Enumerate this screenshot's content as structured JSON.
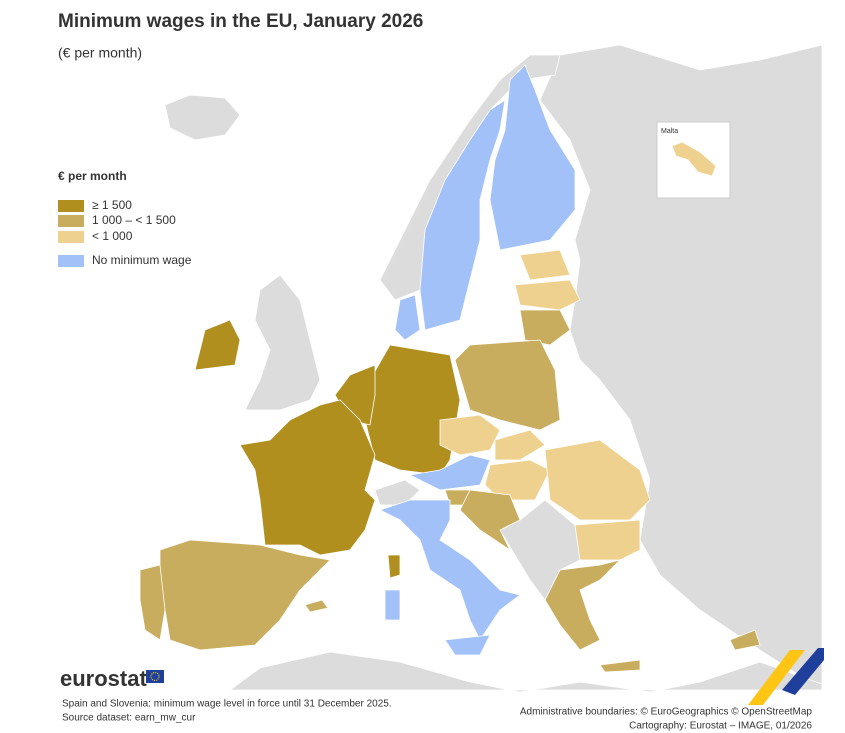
{
  "header": {
    "title": "Minimum wages in the EU, January 2026",
    "subtitle": "(€ per month)"
  },
  "legend": {
    "title": "€ per month",
    "items": [
      {
        "label": "≥ 1 500",
        "color": "#b08f1f"
      },
      {
        "label": "1 000 – < 1 500",
        "color": "#c9ad5f"
      },
      {
        "label": "< 1 000",
        "color": "#efd18f"
      },
      {
        "label": "No minimum wage",
        "color": "#a2c1f8"
      }
    ]
  },
  "inset": {
    "label": "Malta"
  },
  "logo": "eurostat",
  "footer": {
    "notes": [
      "Spain and Slovenia: minimum wage level in force until 31 December 2025.",
      "Source dataset: earn_mw_cur"
    ],
    "credits": [
      "Administrative boundaries: © EuroGeographics © OpenStreetMap",
      "Cartography: Eurostat – IMAGE, 01/2026"
    ]
  }
}
